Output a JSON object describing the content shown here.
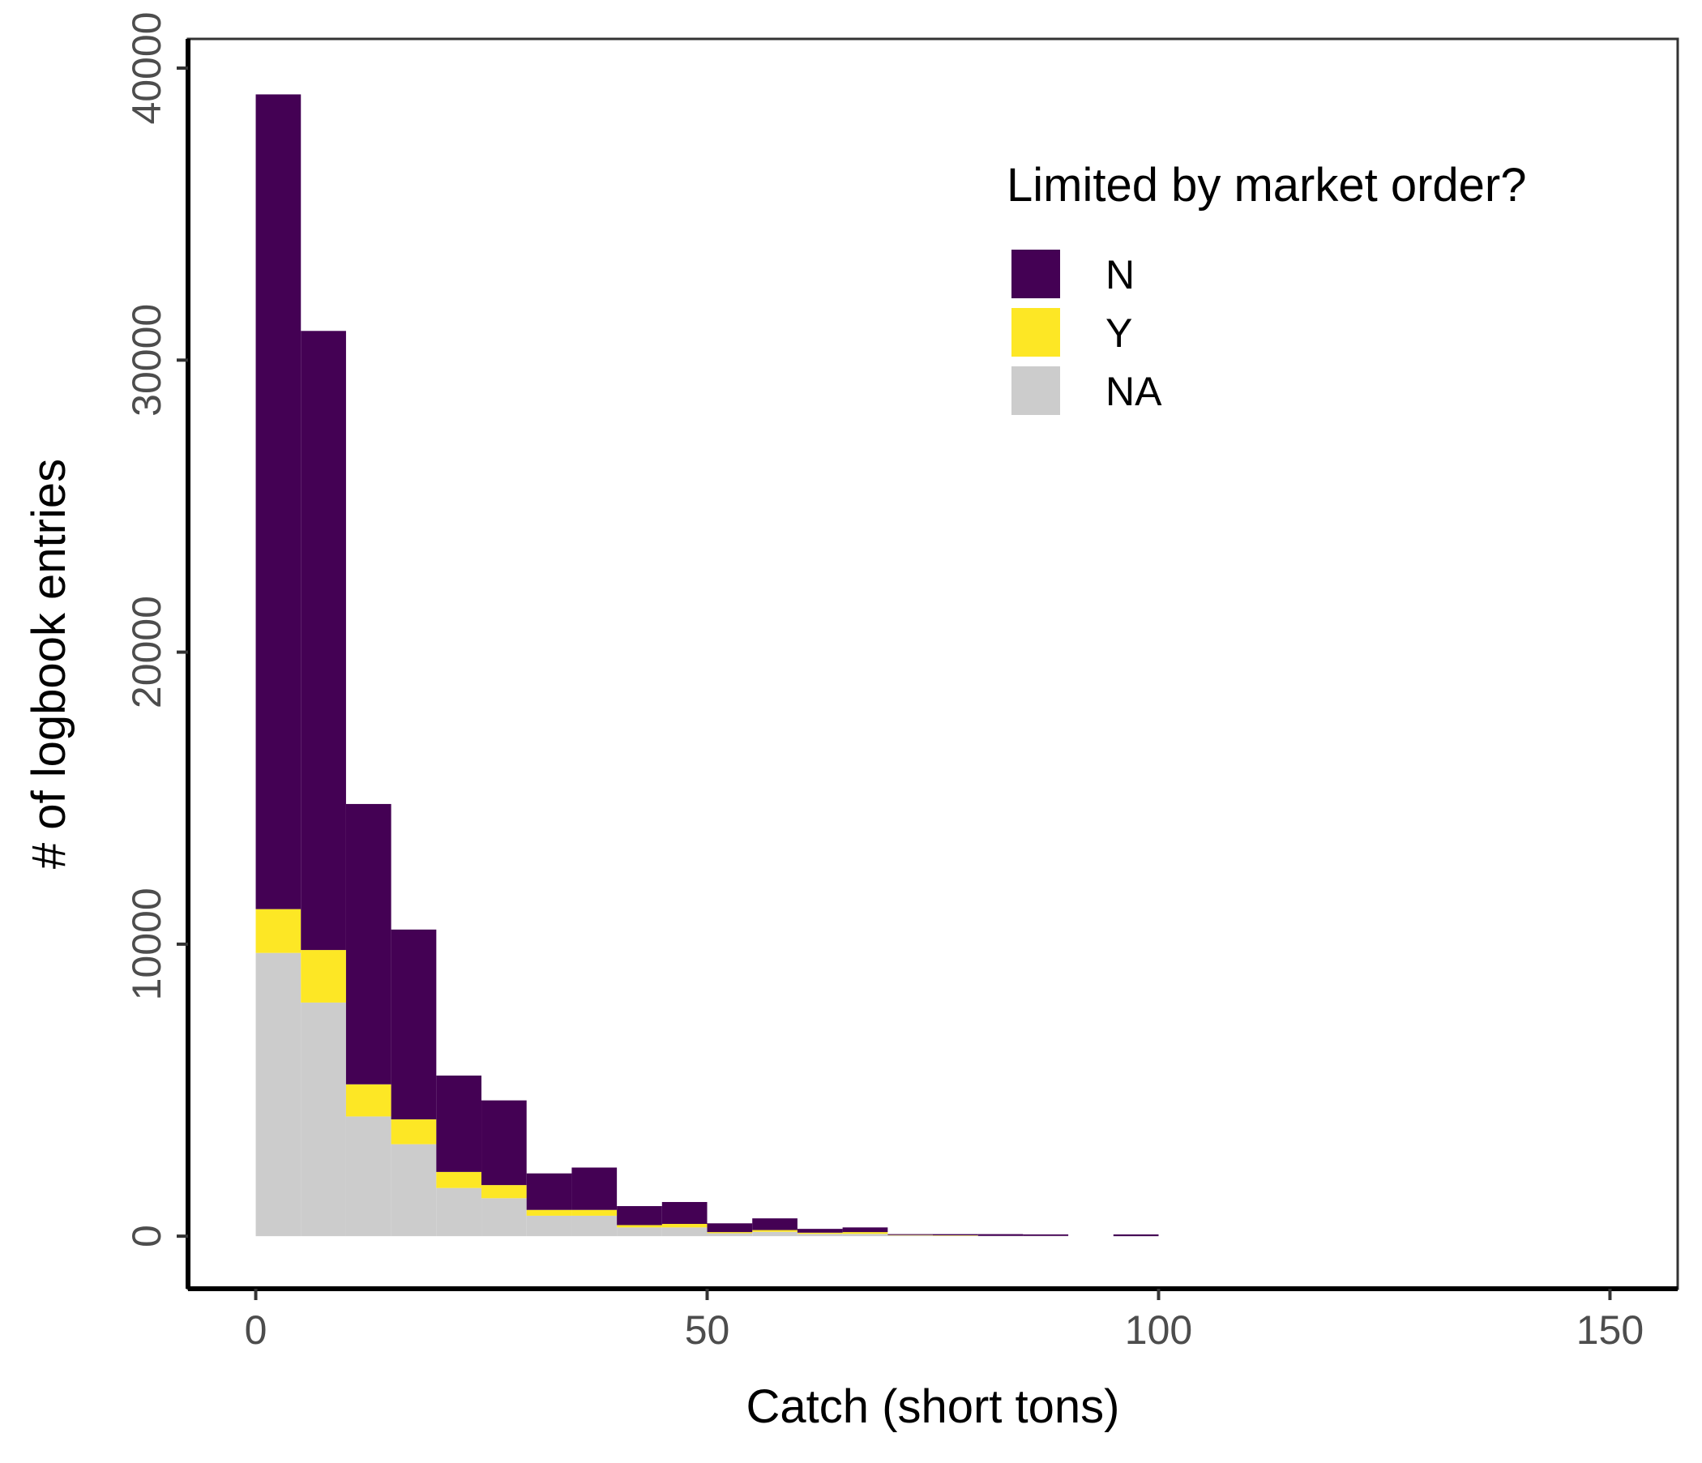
{
  "chart_data": {
    "type": "bar",
    "subtype": "stacked-histogram",
    "xlabel": "Catch (short tons)",
    "ylabel": "# of logbook entries",
    "xlim": [
      -7.5,
      157.5
    ],
    "ylim": [
      -1800,
      41000
    ],
    "x_ticks": [
      0,
      50,
      100,
      150
    ],
    "y_ticks": [
      0,
      10000,
      20000,
      30000,
      40000
    ],
    "grid": false,
    "legend": {
      "title": "Limited by market order?",
      "position": "top-right"
    },
    "bin_width": 5,
    "bin_starts": [
      0,
      5,
      10,
      15,
      20,
      25,
      30,
      35,
      40,
      45,
      50,
      55,
      60,
      65,
      70,
      75,
      80,
      85,
      90,
      95
    ],
    "series": [
      {
        "name": "NA",
        "color": "#cccccc",
        "values": [
          9700,
          8000,
          4100,
          3150,
          1650,
          1300,
          700,
          700,
          300,
          300,
          100,
          150,
          80,
          80,
          30,
          20,
          10,
          10,
          0,
          0
        ]
      },
      {
        "name": "Y",
        "color": "#fde725",
        "values": [
          1500,
          1800,
          1100,
          850,
          550,
          450,
          200,
          200,
          80,
          120,
          40,
          60,
          40,
          60,
          10,
          10,
          0,
          0,
          0,
          0
        ]
      },
      {
        "name": "N",
        "color": "#440154",
        "values": [
          27900,
          21200,
          9600,
          6500,
          3300,
          2900,
          1250,
          1450,
          650,
          750,
          300,
          400,
          130,
          160,
          30,
          40,
          60,
          50,
          0,
          60
        ]
      }
    ],
    "legend_order": [
      "N",
      "Y",
      "NA"
    ]
  }
}
